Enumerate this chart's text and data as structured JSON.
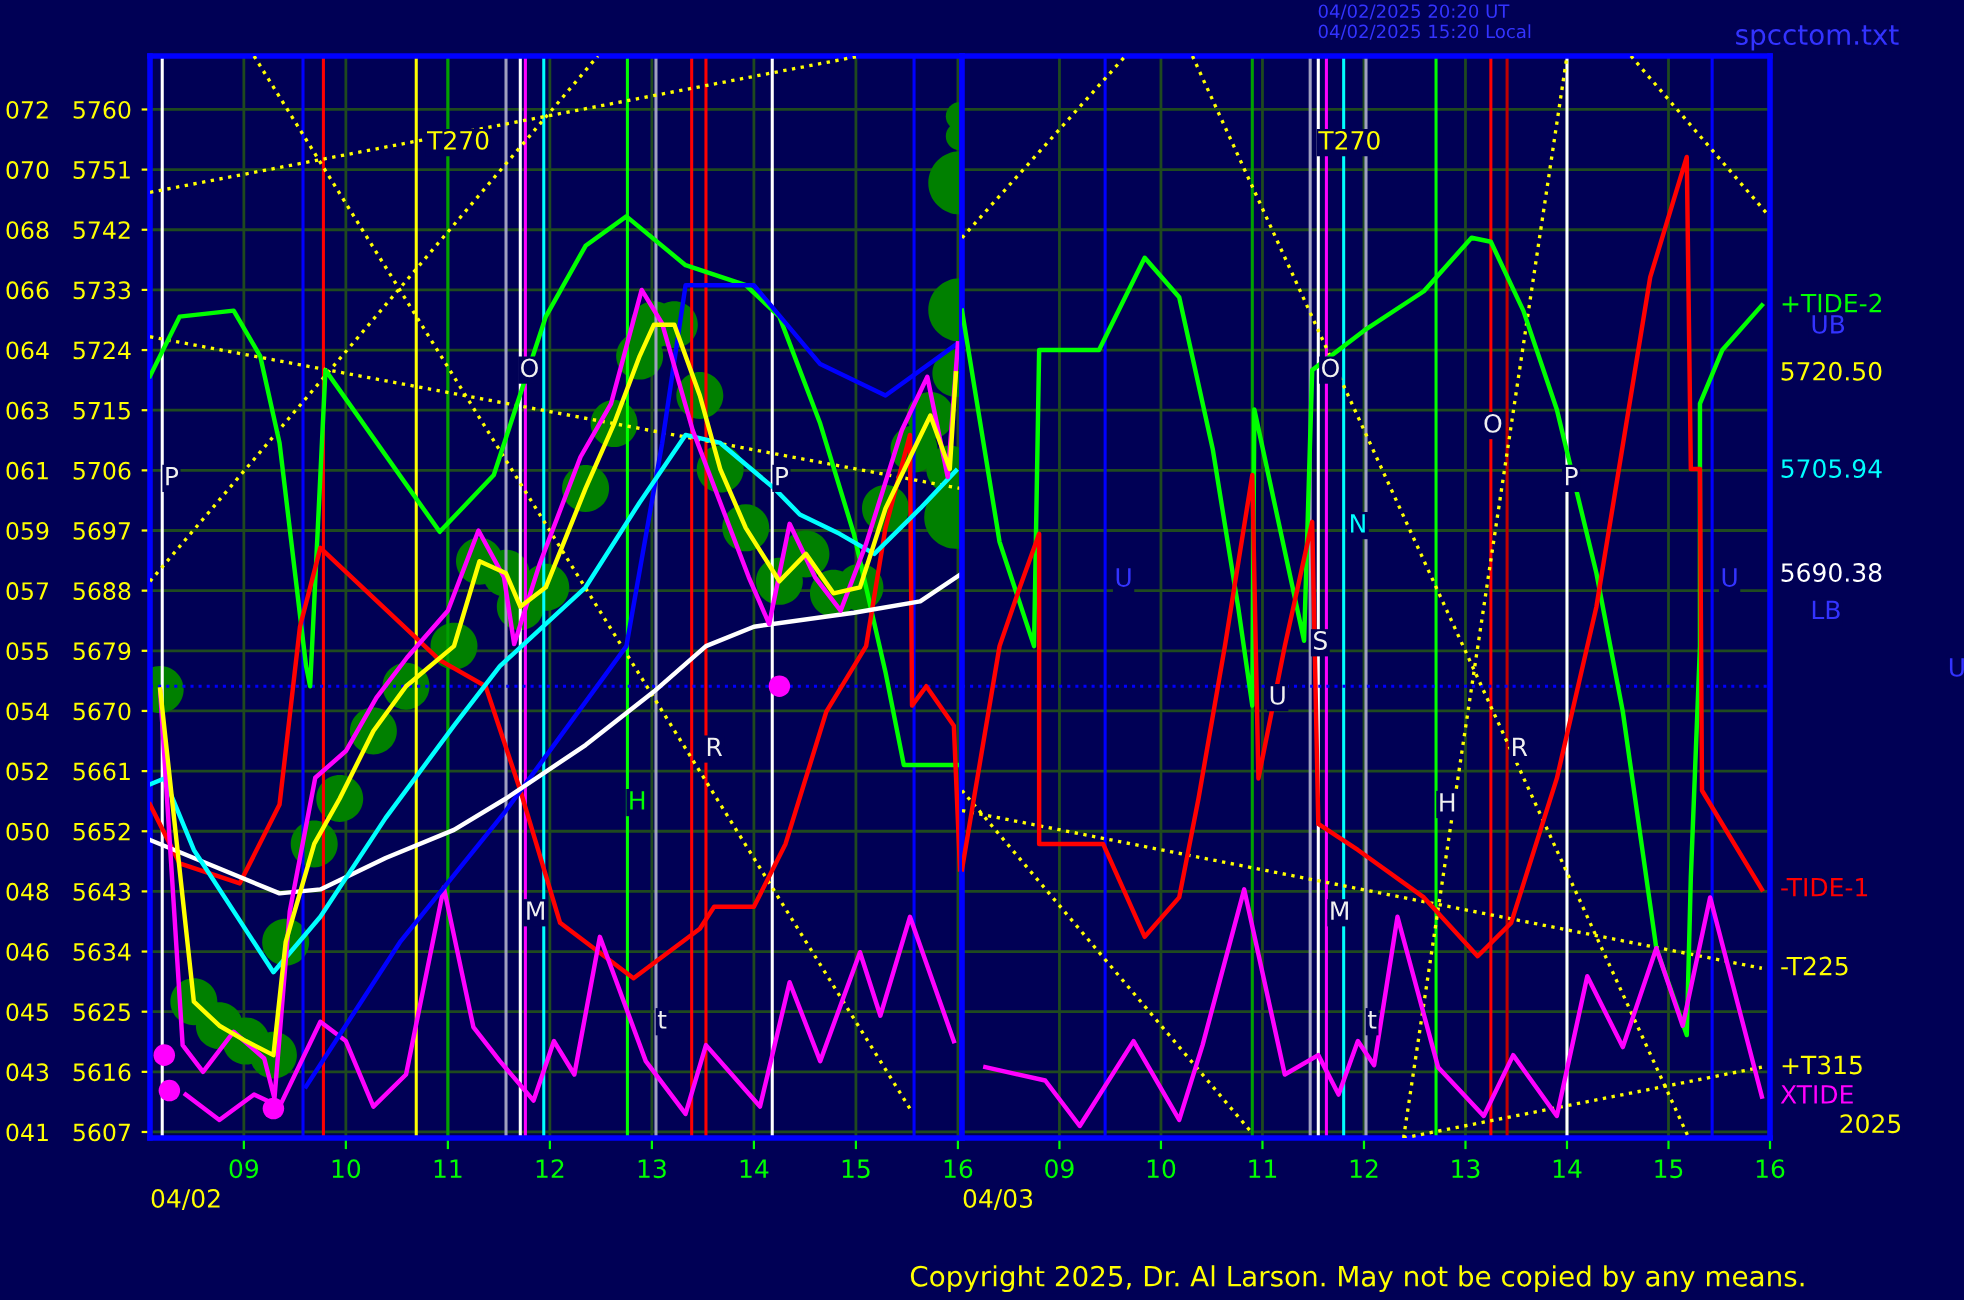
{
  "chart_data": [
    {
      "type": "line",
      "xlabel": "04/02",
      "xlim": [
        8.08,
        16.04
      ],
      "ylim": [
        5606.1,
        5768.0
      ],
      "xticks": [
        {
          "value": 9,
          "label": "09"
        },
        10,
        11,
        12,
        13,
        14,
        15,
        16
      ],
      "yticks": [
        5607,
        5616,
        5625,
        5634,
        5643,
        5652,
        5661,
        5670,
        5679,
        5688,
        5697,
        5706,
        5715,
        5724,
        5733,
        5742,
        5751,
        5760
      ],
      "y2lim": [
        40.82,
        73.2
      ],
      "y2ticks": [
        {
          "value": 41.0,
          "label": "041"
        },
        {
          "value": 42.8,
          "label": "043"
        },
        {
          "value": 44.6,
          "label": "045"
        },
        {
          "value": 46.4,
          "label": "046"
        },
        {
          "value": 48.2,
          "label": "048"
        },
        {
          "value": 50.0,
          "label": "050"
        },
        {
          "value": 51.8,
          "label": "052"
        },
        {
          "value": 53.6,
          "label": "054"
        },
        {
          "value": 55.4,
          "label": "055"
        },
        {
          "value": 57.2,
          "label": "057"
        },
        {
          "value": 59.0,
          "label": "059"
        },
        {
          "value": 60.8,
          "label": "061"
        },
        {
          "value": 62.6,
          "label": "063"
        },
        {
          "value": 64.4,
          "label": "064"
        },
        {
          "value": 66.2,
          "label": "066"
        },
        {
          "value": 68.0,
          "label": "068"
        },
        {
          "value": 69.8,
          "label": "070"
        },
        {
          "value": 71.6,
          "label": "072"
        }
      ],
      "grid": true,
      "series": [
        {
          "type": "bubble",
          "color": "#008000",
          "x": [
            8.18,
            8.51,
            8.76,
            9.02,
            9.29,
            9.41,
            9.69,
            9.94,
            10.27,
            10.59,
            11.06,
            11.31,
            11.57,
            11.71,
            11.96,
            12.35,
            12.63,
            12.88,
            13.02,
            13.22,
            13.47,
            13.67,
            13.92,
            14.25,
            14.51,
            14.78,
            15.04,
            15.29,
            15.57,
            15.73,
            15.92,
            15.98,
            16.02,
            16.02,
            16.02,
            16.02,
            15.98
          ],
          "values": [
            5673.2,
            5626.5,
            5622.9,
            5620.6,
            5618.5,
            5635.4,
            5650.1,
            5656.9,
            5667.0,
            5673.7,
            5679.7,
            5692.4,
            5690.6,
            5685.6,
            5688.5,
            5703.3,
            5713.0,
            5723.1,
            5727.8,
            5727.8,
            5717.2,
            5706.2,
            5697.4,
            5689.4,
            5693.5,
            5687.6,
            5688.5,
            5700.3,
            5709.2,
            5714.2,
            5706.2,
            5720.5,
            5759,
            5756,
            5749,
            5730,
            5699
          ],
          "sizes": [
            0.55,
            0.55,
            0.55,
            0.55,
            0.55,
            0.55,
            0.55,
            0.55,
            0.55,
            0.55,
            0.55,
            0.55,
            0.55,
            0.55,
            0.55,
            0.55,
            0.55,
            0.55,
            0.55,
            0.55,
            0.55,
            0.55,
            0.55,
            0.55,
            0.55,
            0.55,
            0.55,
            0.55,
            0.55,
            0.55,
            0.55,
            0.55,
            0.2,
            0.2,
            1,
            1,
            1
          ]
        },
        {
          "color": "#ffff00",
          "line_style": "dotted",
          "x": [
            8.08,
            12.47
          ],
          "values": [
            5689.4,
            5768.0
          ]
        },
        {
          "color": "#ffff00",
          "line_style": "dotted",
          "x": [
            9.1,
            15.55
          ],
          "values": [
            5768.0,
            5610.0
          ]
        },
        {
          "color": "#ffff00",
          "line_style": "dotted",
          "x": [
            8.08,
            15.04
          ],
          "values": [
            5747.6,
            5768.0
          ]
        },
        {
          "color": "#ffff00",
          "line_style": "dotted",
          "x": [
            8.08,
            16.02
          ],
          "values": [
            5726.0,
            5703.3
          ]
        },
        {
          "color": "#00ff00",
          "x": [
            8.08,
            8.37,
            8.9,
            9.16,
            9.35,
            9.61,
            9.65,
            9.8,
            10.92,
            11.45,
            11.96,
            12.35,
            12.75,
            13.33,
            13.92,
            14.25,
            14.65,
            14.98,
            15.29,
            15.47,
            15.99
          ],
          "values": [
            5720.1,
            5729.0,
            5729.9,
            5723.1,
            5710.1,
            5676.7,
            5673.7,
            5721.0,
            5696.8,
            5705.3,
            5729.0,
            5739.6,
            5744.0,
            5736.7,
            5733.7,
            5729.0,
            5713.0,
            5696.5,
            5675.8,
            5661.9,
            5661.9
          ]
        },
        {
          "color": "#ff0000",
          "x": [
            8.08,
            8.37,
            8.96,
            9.35,
            9.55,
            9.75,
            10.92,
            11.37,
            11.71,
            12.1,
            12.82,
            13.47,
            13.61,
            14.0,
            14.31,
            14.71,
            15.1,
            15.29,
            15.53,
            15.55,
            15.69,
            15.96,
            16.02
          ],
          "values": [
            5656.0,
            5647.2,
            5644.2,
            5656.0,
            5682.6,
            5694.4,
            5677.6,
            5673.7,
            5658.1,
            5638.3,
            5630.0,
            5637.4,
            5640.7,
            5640.7,
            5650.1,
            5669.9,
            5679.7,
            5697.4,
            5711.3,
            5670.8,
            5673.7,
            5667.8,
            5646.3
          ]
        },
        {
          "color": "#ff00ff",
          "x": [
            8.43,
            8.76,
            9.1,
            9.35,
            9.75,
            10.0,
            10.27,
            10.59,
            10.96,
            11.25,
            11.51,
            11.84,
            12.04,
            12.24,
            12.49,
            12.94,
            13.33,
            13.53,
            14.06,
            14.35,
            14.65,
            15.04,
            15.24,
            15.53,
            15.96
          ],
          "values": [
            5612.6,
            5608.8,
            5612.6,
            5610.8,
            5623.5,
            5620.6,
            5610.8,
            5615.6,
            5643.6,
            5622.7,
            5617.6,
            5611.7,
            5620.6,
            5615.6,
            5636.2,
            5617.6,
            5609.7,
            5620.0,
            5610.8,
            5629.4,
            5617.6,
            5633.9,
            5624.4,
            5639.2,
            5620.6
          ]
        },
        {
          "color": "#0000ff",
          "x": [
            9.61,
            10.53,
            11.57,
            12.75,
            13.1,
            13.33,
            14.0,
            14.65,
            15.29,
            15.98
          ],
          "values": [
            5613.8,
            5635.4,
            5655.1,
            5679.7,
            5710.0,
            5733.7,
            5733.7,
            5721.9,
            5717.2,
            5724.8
          ]
        },
        {
          "color": "#ffffff",
          "x": [
            8.08,
            8.51,
            9.35,
            9.75,
            10.39,
            11.06,
            11.57,
            12.35,
            13.02,
            13.53,
            14.0,
            14.98,
            15.63,
            16.02
          ],
          "values": [
            5650.7,
            5648.0,
            5642.7,
            5643.3,
            5648.0,
            5652.2,
            5656.9,
            5664.9,
            5672.9,
            5679.7,
            5682.6,
            5684.7,
            5686.4,
            5690.38
          ]
        },
        {
          "color": "#00ffff",
          "x": [
            8.08,
            8.22,
            8.51,
            9.29,
            9.75,
            10.39,
            11.06,
            11.51,
            12.35,
            12.88,
            13.33,
            13.67,
            14.2,
            14.45,
            14.84,
            15.18,
            15.63,
            15.98
          ],
          "values": [
            5659.0,
            5659.9,
            5649.2,
            5630.9,
            5639.2,
            5654.0,
            5667.8,
            5676.7,
            5688.5,
            5701.2,
            5711.3,
            5710.1,
            5703.3,
            5699.4,
            5696.5,
            5693.5,
            5700.3,
            5705.94
          ]
        },
        {
          "color": "#ff00ff",
          "x": [
            8.18,
            8.4,
            8.6,
            8.9,
            9.2,
            9.3,
            9.45,
            9.7,
            10.0,
            10.3,
            10.6,
            11.0,
            11.3,
            11.55,
            11.65,
            11.9,
            12.3,
            12.6,
            12.9,
            13.1,
            13.4,
            13.7,
            13.95,
            14.15,
            14.35,
            14.6,
            14.85,
            15.1,
            15.45,
            15.7,
            15.9,
            16.0
          ],
          "values": [
            5673,
            5620,
            5616,
            5622,
            5618,
            5612,
            5640,
            5660,
            5664,
            5672,
            5678,
            5685,
            5697,
            5690,
            5680,
            5692,
            5708,
            5716,
            5733,
            5728,
            5712,
            5700,
            5690,
            5683,
            5698,
            5690,
            5685,
            5695,
            5712,
            5720,
            5705,
            5725
          ]
        },
        {
          "color": "#ffff00",
          "x": [
            8.18,
            8.51,
            8.76,
            9.02,
            9.29,
            9.41,
            9.69,
            9.94,
            10.27,
            10.59,
            11.06,
            11.31,
            11.57,
            11.71,
            11.96,
            12.35,
            12.63,
            12.88,
            13.02,
            13.22,
            13.47,
            13.67,
            13.92,
            14.25,
            14.51,
            14.78,
            15.04,
            15.29,
            15.57,
            15.73,
            15.92,
            15.98
          ],
          "values": [
            5673.2,
            5626.5,
            5622.9,
            5620.6,
            5618.5,
            5635.4,
            5650.1,
            5656.9,
            5667.0,
            5673.7,
            5679.7,
            5692.4,
            5690.6,
            5685.6,
            5688.5,
            5703.3,
            5713.0,
            5723.1,
            5727.8,
            5727.8,
            5717.2,
            5706.2,
            5697.4,
            5689.4,
            5693.5,
            5687.6,
            5688.5,
            5700.3,
            5709.2,
            5714.2,
            5706.2,
            5720.5
          ]
        },
        {
          "type": "scatter",
          "color": "#ff00ff",
          "marker": "circle",
          "x": [
            8.22,
            8.27,
            9.29,
            14.25
          ],
          "values": [
            5618.5,
            5613.2,
            5610.5,
            5673.7
          ]
        }
      ],
      "ref_lines": [
        {
          "axis": "x",
          "value": 8.2,
          "color": "#ffffff"
        },
        {
          "axis": "x",
          "value": 9.58,
          "color": "#0000ff"
        },
        {
          "axis": "x",
          "value": 9.78,
          "color": "#ff0000"
        },
        {
          "axis": "x",
          "value": 10.69,
          "color": "#ffff00"
        },
        {
          "axis": "x",
          "value": 11.0,
          "color": "#00a000"
        },
        {
          "axis": "x",
          "value": 11.57,
          "color": "#a0a0c0"
        },
        {
          "axis": "x",
          "value": 11.71,
          "color": "#ffffff"
        },
        {
          "axis": "x",
          "value": 11.76,
          "color": "#ff00ff"
        },
        {
          "axis": "x",
          "value": 11.94,
          "color": "#00ffff"
        },
        {
          "axis": "x",
          "value": 12.76,
          "color": "#00ff00"
        },
        {
          "axis": "x",
          "value": 13.04,
          "color": "#a0a0c0"
        },
        {
          "axis": "x",
          "value": 13.39,
          "color": "#ff0000"
        },
        {
          "axis": "x",
          "value": 13.53,
          "color": "#ff0000"
        },
        {
          "axis": "x",
          "value": 14.18,
          "color": "#ffffff"
        },
        {
          "axis": "x",
          "value": 15.57,
          "color": "#0000ff"
        },
        {
          "axis": "x",
          "value": 16.04,
          "color": "#0000ff"
        },
        {
          "axis": "y",
          "value": 5673.7,
          "color": "#0000ff",
          "line_style": "dotted"
        }
      ],
      "annotations": [
        "T270",
        "H",
        {
          "text": "P",
          "x": 8.29,
          "y": 5704.8
        },
        {
          "text": "O",
          "x": 11.8,
          "y": 5721.0
        },
        {
          "text": "P",
          "x": 14.27,
          "y": 5704.8
        },
        {
          "text": "M",
          "x": 11.86,
          "y": 5639.8
        },
        {
          "text": "R",
          "x": 13.61,
          "y": 5664.3
        },
        {
          "text": "t",
          "x": 13.1,
          "y": 5623.5
        }
      ]
    },
    {
      "type": "line",
      "xlabel": "04/03",
      "subtitle": "04/02/2025 20:20 UT\n04/02/2025 15:20 Local",
      "tick_labels": "x",
      "xlim": [
        8.04,
        16.0
      ],
      "ylim": [
        5606.1,
        5768.0
      ],
      "xticks": [
        {
          "value": 9,
          "label": "09"
        },
        10,
        11,
        12,
        13,
        14,
        15,
        16
      ],
      "yticks": [
        5607,
        5616,
        5625,
        5634,
        5643,
        5652,
        5661,
        5670,
        5679,
        5688,
        5697,
        5706,
        5715,
        5724,
        5733,
        5742,
        5751,
        5760
      ],
      "grid": true,
      "series": [
        {
          "color": "#ffff00",
          "line_style": "dotted",
          "x": [
            8.04,
            9.65
          ],
          "values": [
            5740.8,
            5768.0
          ]
        },
        {
          "color": "#ffff00",
          "line_style": "dotted",
          "x": [
            10.31,
            15.2
          ],
          "values": [
            5768.0,
            5606.1
          ]
        },
        {
          "color": "#ffff00",
          "line_style": "dotted",
          "x": [
            12.39,
            14.0
          ],
          "values": [
            5606.1,
            5768.0
          ]
        },
        {
          "color": "#ffff00",
          "line_style": "dotted",
          "x": [
            14.63,
            15.96
          ],
          "values": [
            5768.0,
            5744.6
          ]
        },
        {
          "color": "#ffff00",
          "line_style": "dotted",
          "x": [
            8.04,
            10.9
          ],
          "values": [
            5658.1,
            5606.8
          ]
        },
        {
          "name": "-T225",
          "color": "#ffff00",
          "line_style": "dotted",
          "x": [
            8.04,
            15.92
          ],
          "values": [
            5655.1,
            5631.5
          ]
        },
        {
          "name": "+T315",
          "color": "#ffff00",
          "line_style": "dotted",
          "x": [
            12.39,
            15.92
          ],
          "values": [
            5606.1,
            5616.7
          ]
        },
        {
          "name": "+TIDE-2",
          "color": "#00ff00",
          "x": [
            8.04,
            8.41,
            8.75,
            8.8,
            9.39,
            9.84,
            10.18,
            10.51,
            10.76,
            10.9,
            10.92,
            11.41,
            11.49,
            12.0,
            12.59,
            13.06,
            13.25,
            13.57,
            13.9,
            14.29,
            14.55,
            14.88,
            15.18,
            15.22,
            15.31,
            15.31,
            15.53,
            15.92
          ],
          "values": [
            5729.9,
            5695.3,
            5679.7,
            5724.0,
            5724.0,
            5737.8,
            5731.9,
            5709.2,
            5685.6,
            5670.8,
            5715.1,
            5680.5,
            5721.0,
            5726.9,
            5732.8,
            5740.8,
            5740.2,
            5729.9,
            5715.1,
            5690.6,
            5669.9,
            5634.5,
            5621.5,
            5645.1,
            5679.7,
            5716.0,
            5724.0,
            5730.7
          ]
        },
        {
          "name": "-TIDE-1",
          "color": "#ff0000",
          "x": [
            8.04,
            8.41,
            8.61,
            8.8,
            8.8,
            9.43,
            9.84,
            10.18,
            10.37,
            10.63,
            10.9,
            10.96,
            11.22,
            11.49,
            11.55,
            11.94,
            12.59,
            13.12,
            13.45,
            13.9,
            14.29,
            14.82,
            15.18,
            15.22,
            15.31,
            15.33,
            15.92
          ],
          "values": [
            5646.3,
            5679.7,
            5688.5,
            5696.5,
            5650.1,
            5650.1,
            5636.2,
            5642.1,
            5656.9,
            5679.7,
            5705.3,
            5659.9,
            5679.7,
            5698.3,
            5653.1,
            5649.2,
            5642.1,
            5633.3,
            5638.3,
            5659.9,
            5685.6,
            5734.9,
            5752.9,
            5706.2,
            5706.2,
            5658.1,
            5643.3
          ]
        },
        {
          "name": "XTIDE",
          "color": "#ff00ff",
          "x": [
            8.27,
            8.86,
            9.2,
            9.73,
            10.18,
            10.41,
            10.82,
            11.22,
            11.55,
            11.75,
            11.94,
            12.1,
            12.33,
            12.73,
            13.18,
            13.47,
            13.9,
            14.2,
            14.55,
            14.88,
            15.14,
            15.41,
            15.92
          ],
          "values": [
            5616.7,
            5614.7,
            5607.9,
            5620.6,
            5608.8,
            5620.0,
            5643.3,
            5615.6,
            5618.5,
            5612.6,
            5620.6,
            5617.0,
            5639.2,
            5616.7,
            5609.4,
            5618.5,
            5609.4,
            5630.3,
            5619.7,
            5634.5,
            5622.9,
            5642.1,
            5612.3
          ]
        }
      ],
      "ref_lines": [
        {
          "axis": "x",
          "value": 9.45,
          "color": "#0000ff"
        },
        {
          "axis": "x",
          "value": 10.9,
          "color": "#00a000"
        },
        {
          "axis": "x",
          "value": 11.47,
          "color": "#a0a0c0"
        },
        {
          "axis": "x",
          "value": 11.55,
          "color": "#ffffff"
        },
        {
          "axis": "x",
          "value": 11.63,
          "color": "#ff00ff"
        },
        {
          "axis": "x",
          "value": 11.8,
          "color": "#00ffff"
        },
        {
          "axis": "x",
          "value": 12.02,
          "color": "#a0a0c0"
        },
        {
          "axis": "x",
          "value": 12.71,
          "color": "#00ff00"
        },
        {
          "axis": "x",
          "value": 13.25,
          "color": "#ff0000"
        },
        {
          "axis": "x",
          "value": 13.41,
          "color": "#c00000"
        },
        {
          "axis": "x",
          "value": 14.0,
          "color": "#ffffff"
        },
        {
          "axis": "x",
          "value": 15.43,
          "color": "#0000ff"
        },
        {
          "axis": "y",
          "value": 5673.7,
          "color": "#0000ff",
          "line_style": "dotted"
        }
      ],
      "annotations": [
        "T270",
        "N",
        "U",
        "U",
        "UB",
        "LB",
        "U",
        "2025",
        "spcctom.txt",
        "Copyright 2025, Dr. Al Larson. May not be copied by any means.",
        "5720.50",
        "5705.94",
        "5690.38",
        {
          "text": "O",
          "x": 11.67,
          "y": 5721.0
        },
        {
          "text": "S",
          "x": 11.57,
          "y": 5680.2
        },
        {
          "text": "M",
          "x": 11.76,
          "y": 5639.8
        },
        {
          "text": "H",
          "x": 12.82,
          "y": 5656.0
        },
        {
          "text": "R",
          "x": 13.53,
          "y": 5664.3
        },
        {
          "text": "t",
          "x": 12.08,
          "y": 5623.5
        },
        {
          "text": "O",
          "x": 13.27,
          "y": 5712.7
        },
        {
          "text": "P",
          "x": 14.04,
          "y": 5704.8
        },
        {
          "text": "U",
          "x": 11.15,
          "y": 5672.0
        }
      ]
    }
  ]
}
